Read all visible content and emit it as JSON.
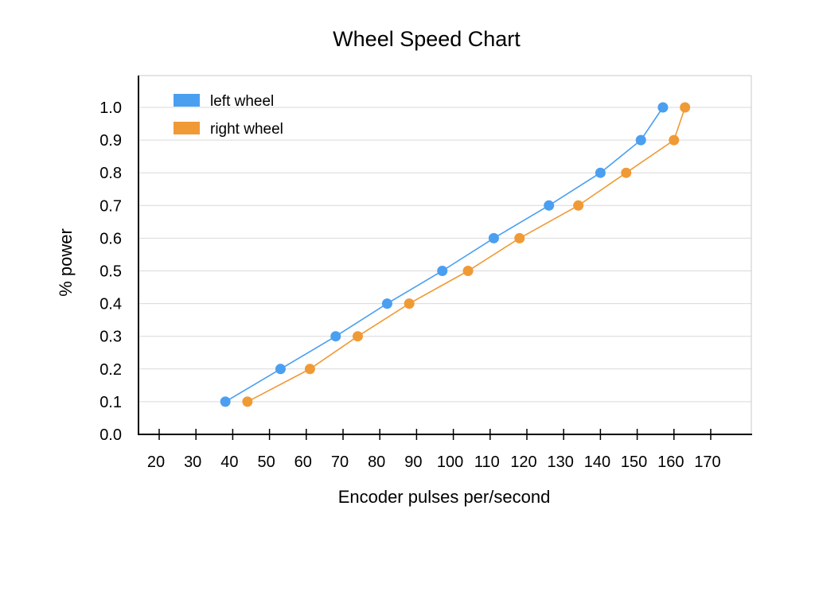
{
  "chart_data": {
    "type": "line",
    "title": "Wheel Speed Chart",
    "xlabel": "Encoder pulses per/second",
    "ylabel": "% power",
    "xlim": [
      20,
      170
    ],
    "ylim": [
      0.0,
      1.0
    ],
    "x_ticks": [
      20,
      30,
      40,
      50,
      60,
      70,
      80,
      90,
      100,
      110,
      120,
      130,
      140,
      150,
      160,
      170
    ],
    "y_ticks": [
      "0.0",
      "0.1",
      "0.2",
      "0.3",
      "0.4",
      "0.5",
      "0.6",
      "0.7",
      "0.8",
      "0.9",
      "1.0"
    ],
    "grid": "horizontal",
    "legend_position": "top-left",
    "series": [
      {
        "name": "left wheel",
        "color": "#4a9ff0",
        "points": [
          [
            38,
            0.1
          ],
          [
            53,
            0.2
          ],
          [
            68,
            0.3
          ],
          [
            82,
            0.4
          ],
          [
            97,
            0.5
          ],
          [
            111,
            0.6
          ],
          [
            126,
            0.7
          ],
          [
            140,
            0.8
          ],
          [
            151,
            0.9
          ],
          [
            157,
            1.0
          ]
        ]
      },
      {
        "name": "right wheel",
        "color": "#f09a36",
        "points": [
          [
            44,
            0.1
          ],
          [
            61,
            0.2
          ],
          [
            74,
            0.3
          ],
          [
            88,
            0.4
          ],
          [
            104,
            0.5
          ],
          [
            118,
            0.6
          ],
          [
            134,
            0.7
          ],
          [
            147,
            0.8
          ],
          [
            160,
            0.9
          ],
          [
            163,
            1.0
          ]
        ]
      }
    ]
  }
}
